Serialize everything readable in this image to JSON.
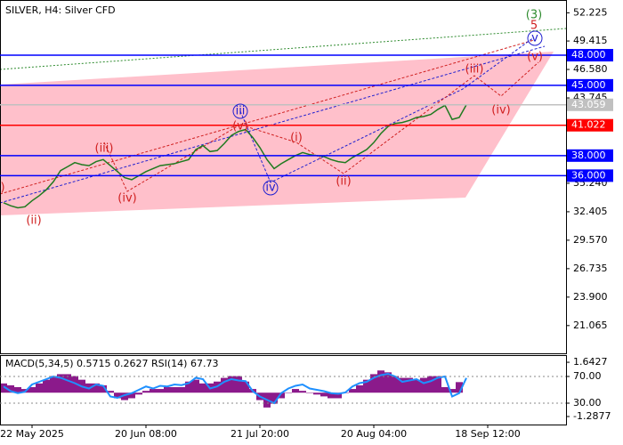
{
  "chart_data": [
    {
      "type": "line",
      "title": "SILVER, H4:  Silver CFD",
      "color": "#1f7a1f",
      "categories": [
        null,
        null,
        null,
        null,
        "22 May 2025",
        null,
        null,
        null,
        null,
        null,
        null,
        null,
        null,
        null,
        null,
        null,
        null,
        null,
        null,
        null,
        "20 Jun 08:00",
        null,
        null,
        null,
        null,
        null,
        null,
        null,
        null,
        null,
        null,
        null,
        null,
        null,
        null,
        null,
        "21 Jul 20:00",
        null,
        null,
        null,
        null,
        null,
        null,
        null,
        null,
        null,
        null,
        null,
        null,
        null,
        null,
        null,
        "20 Aug 04:00",
        null,
        null,
        null,
        null,
        null,
        null,
        null,
        null,
        null,
        null,
        null,
        null,
        null,
        null,
        null,
        "18 Sep 12:00",
        null,
        null,
        null,
        null,
        null,
        null,
        null,
        null,
        null,
        null
      ],
      "values": [
        33.3,
        33.0,
        32.8,
        32.9,
        33.5,
        34.0,
        34.6,
        35.4,
        36.5,
        36.9,
        37.3,
        37.1,
        37.0,
        37.4,
        37.6,
        37.0,
        36.4,
        35.8,
        35.6,
        36.0,
        36.4,
        36.7,
        37.0,
        37.1,
        37.2,
        37.4,
        37.6,
        38.6,
        39.0,
        38.4,
        38.5,
        39.2,
        40.0,
        40.4,
        40.6,
        39.8,
        38.8,
        37.6,
        36.7,
        37.2,
        37.6,
        38.0,
        38.3,
        38.1,
        38.0,
        37.9,
        37.6,
        37.4,
        37.3,
        37.8,
        38.2,
        38.6,
        39.3,
        40.2,
        40.9,
        41.2,
        41.3,
        41.5,
        41.8,
        41.9,
        42.1,
        42.6,
        43.0,
        41.6,
        41.8,
        43.059,
        null,
        null,
        null,
        null,
        null,
        null,
        null,
        null,
        null,
        null,
        null,
        null,
        null
      ],
      "ylim": [
        18.3,
        53.5
      ],
      "yticks": [
        52.225,
        49.415,
        {
          "value": 46.58,
          "label": "46.580"
        },
        43.745,
        {
          "value": 35.24,
          "label": "35.240"
        },
        32.405,
        {
          "value": 29.57,
          "label": "29.570"
        },
        26.735,
        {
          "value": 23.9,
          "label": "23.900"
        },
        21.065
      ],
      "levels": [
        {
          "value": 48,
          "label": "48.000",
          "color": "#0000ff"
        },
        {
          "value": 45,
          "label": "45.000",
          "color": "#0000ff"
        },
        {
          "value": 43.059,
          "label": "43.059",
          "color": "#c0c0c0"
        },
        {
          "value": 41.022,
          "label": "41.022",
          "color": "#ff0000"
        },
        {
          "value": 38,
          "label": "38.000",
          "color": "#0000ff"
        },
        {
          "value": 36,
          "label": "36.000",
          "color": "#0000ff"
        }
      ],
      "wave_labels": [
        "(3)",
        "5",
        "v",
        "(v)",
        "(iii)",
        "(iv)",
        "iii",
        "(v)",
        "(i)",
        "(ii)",
        "iv",
        "(iii)",
        "(iv)",
        "(ii)",
        ")"
      ]
    },
    {
      "type": "bar",
      "title": "MACD(5,34,5) 0.5715 0.2627 RSI(14) 67.73",
      "series": [
        {
          "color": "#8b1a8b",
          "values": [
            0.5,
            0.4,
            0.3,
            0.2,
            0.3,
            0.5,
            0.7,
            0.9,
            1.0,
            1.0,
            0.9,
            0.7,
            0.5,
            0.5,
            0.4,
            0.1,
            -0.3,
            -0.4,
            -0.3,
            -0.1,
            0.1,
            0.2,
            0.2,
            0.3,
            0.3,
            0.3,
            0.6,
            0.7,
            0.5,
            0.5,
            0.6,
            0.8,
            0.9,
            0.9,
            0.6,
            0.2,
            -0.4,
            -0.8,
            -0.6,
            -0.3,
            0.0,
            0.2,
            0.1,
            0.0,
            -0.1,
            -0.2,
            -0.3,
            -0.3,
            0.0,
            0.2,
            0.4,
            0.7,
            1.0,
            1.2,
            1.1,
            0.9,
            0.8,
            0.8,
            0.7,
            0.8,
            0.9,
            0.9,
            0.3,
            0.2,
            0.5715
          ]
        },
        {
          "color": "#1e90ff",
          "axis": "y2",
          "values": [
            55,
            48,
            45,
            47,
            58,
            62,
            66,
            70,
            68,
            64,
            60,
            55,
            52,
            58,
            56,
            40,
            38,
            42,
            45,
            50,
            55,
            52,
            56,
            55,
            58,
            57,
            60,
            68,
            66,
            52,
            55,
            62,
            66,
            64,
            63,
            48,
            40,
            35,
            30,
            45,
            52,
            56,
            58,
            52,
            50,
            48,
            45,
            44,
            46,
            55,
            60,
            62,
            68,
            72,
            74,
            70,
            62,
            64,
            66,
            60,
            63,
            68,
            70,
            40,
            45,
            67.73
          ]
        }
      ],
      "ylim": [
        -1.72,
        2.03
      ],
      "yticks": [
        1.6427,
        -1.2877
      ],
      "y2lim": [
        -2,
        102
      ],
      "y2ticks": [
        {
          "value": 70,
          "label": "70.00"
        },
        {
          "value": 30,
          "label": "30.00"
        }
      ]
    }
  ]
}
